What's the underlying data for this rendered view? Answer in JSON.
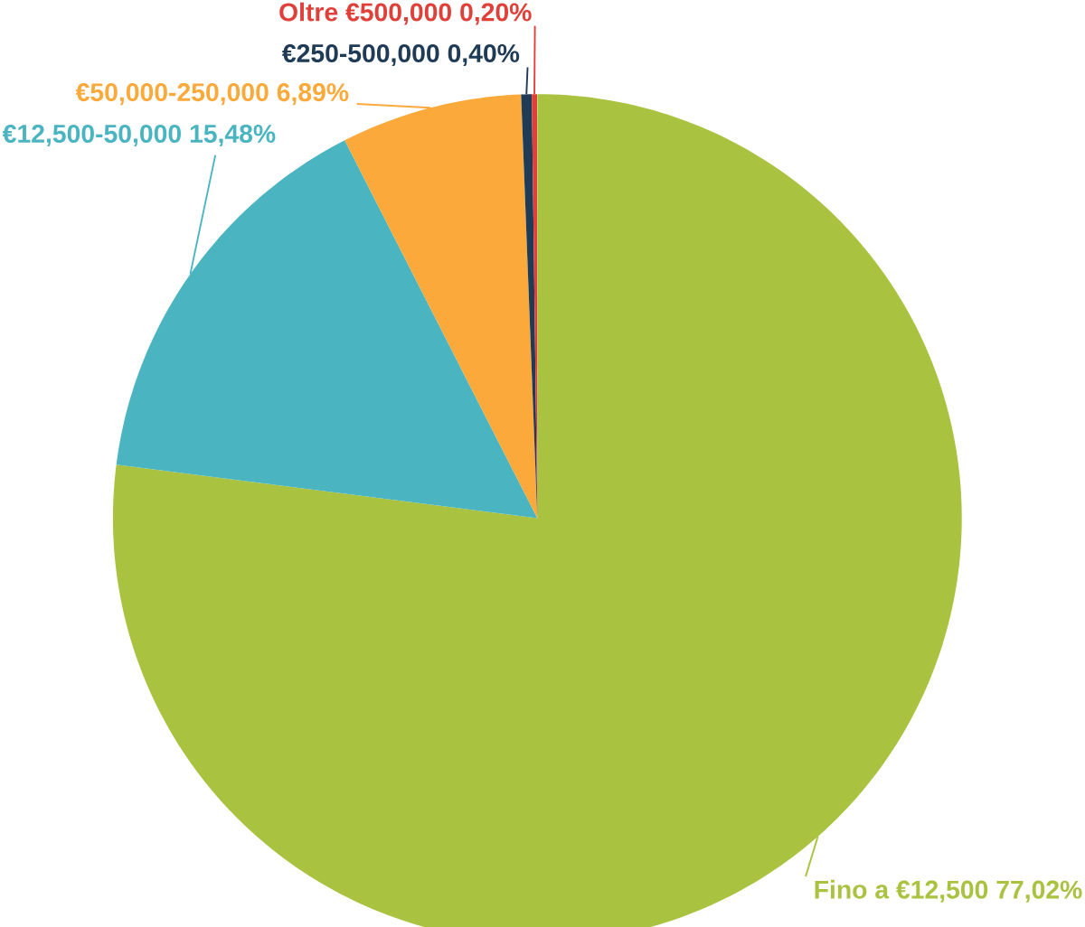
{
  "chart_data": {
    "type": "pie",
    "categories": [
      "Fino a €12,500",
      "€12,500-50,000",
      "€50,000-250,000",
      "€250-500,000",
      "Oltre €500,000"
    ],
    "values": [
      77.02,
      15.48,
      6.89,
      0.4,
      0.2
    ],
    "value_labels": [
      "77,02%",
      "15,48%",
      "6,89%",
      "0,40%",
      "0,20%"
    ],
    "colors": [
      "#a9c23f",
      "#4ab5c1",
      "#fba93a",
      "#1f3b55",
      "#e0403a"
    ]
  }
}
